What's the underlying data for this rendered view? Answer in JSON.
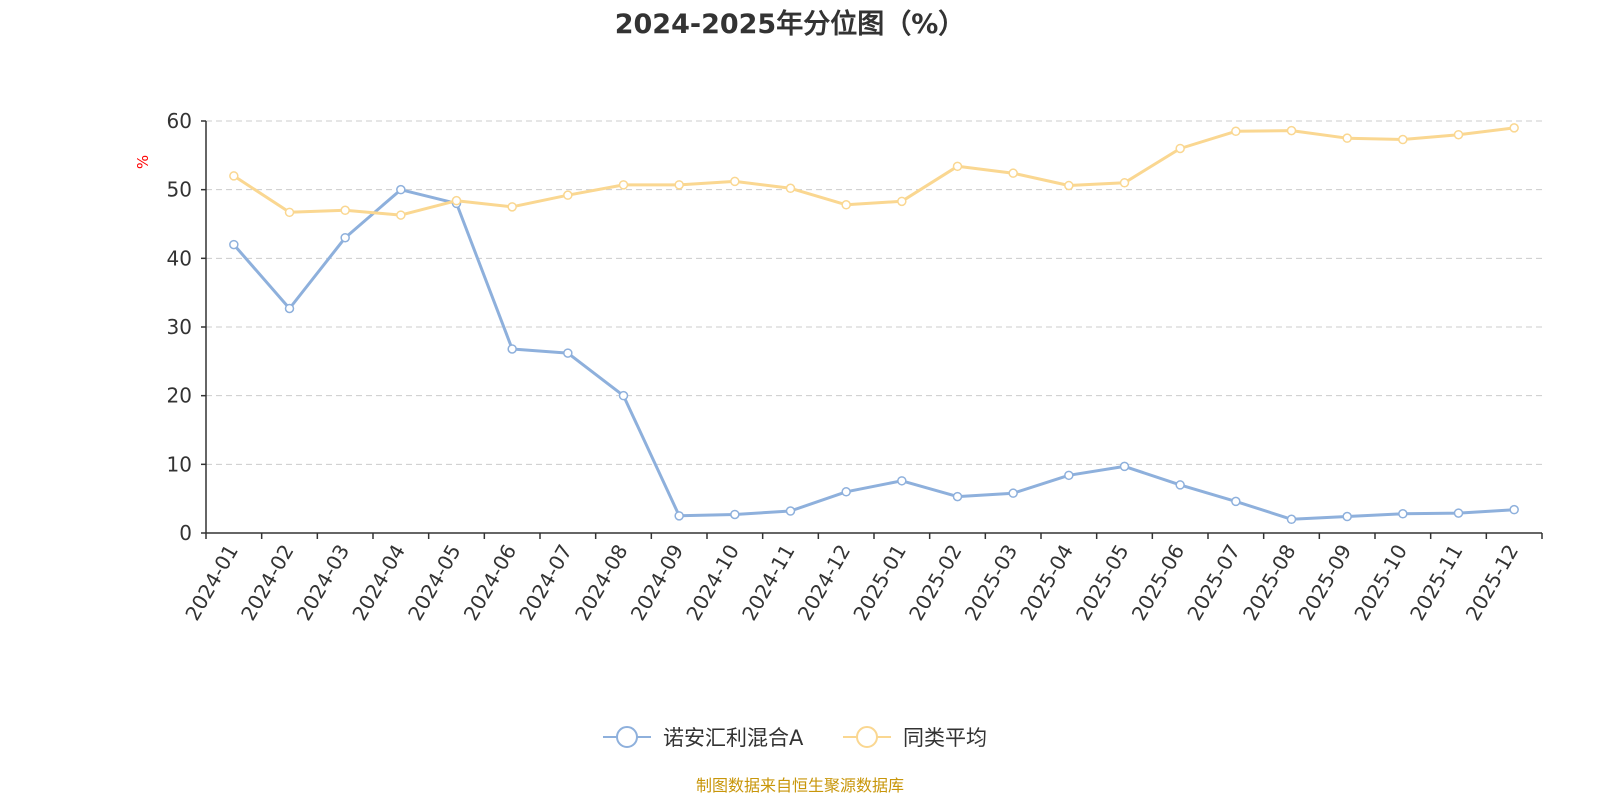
{
  "chart_data": {
    "type": "line",
    "title": "2024-2025年分位图（%）",
    "ylabel": "%",
    "xlabel": "",
    "ylim": [
      0,
      60
    ],
    "yticks": [
      0,
      10,
      20,
      30,
      40,
      50,
      60
    ],
    "grid": true,
    "legend_position": "bottom",
    "categories": [
      "2024-01",
      "2024-02",
      "2024-03",
      "2024-04",
      "2024-05",
      "2024-06",
      "2024-07",
      "2024-08",
      "2024-09",
      "2024-10",
      "2024-11",
      "2024-12",
      "2025-01",
      "2025-02",
      "2025-03",
      "2025-04",
      "2025-05",
      "2025-06",
      "2025-07",
      "2025-08",
      "2025-09",
      "2025-10",
      "2025-11",
      "2025-12"
    ],
    "series": [
      {
        "name": "诺安汇利混合A",
        "color": "#8eb0dc",
        "values": [
          42.0,
          32.7,
          43.0,
          50.0,
          48.0,
          26.8,
          26.2,
          20.0,
          2.5,
          2.7,
          3.2,
          6.0,
          7.6,
          5.3,
          5.8,
          8.4,
          9.7,
          7.0,
          4.6,
          2.0,
          2.4,
          2.8,
          2.9,
          3.4
        ]
      },
      {
        "name": "同类平均",
        "color": "#fad791",
        "values": [
          52.0,
          46.7,
          47.0,
          46.3,
          48.4,
          47.5,
          49.2,
          50.7,
          50.7,
          51.2,
          50.2,
          47.8,
          48.3,
          53.4,
          52.4,
          50.6,
          51.0,
          56.0,
          58.5,
          58.6,
          57.5,
          57.3,
          58.0,
          59.0
        ]
      }
    ],
    "source": "制图数据来自恒生聚源数据库"
  },
  "colors": {
    "axis": "#333333",
    "grid": "#cccccc",
    "unit": "#ff0000",
    "source": "#c8960a"
  }
}
